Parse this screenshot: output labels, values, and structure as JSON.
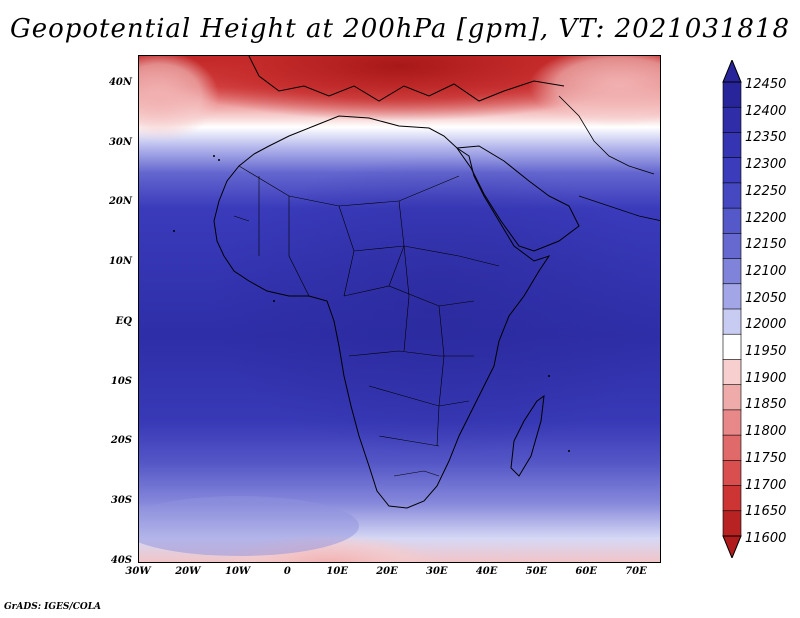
{
  "title": "Geopotential Height at 200hPa [gpm], VT: 2021031818",
  "credit": "GrADS: IGES/COLA",
  "lat_ticks": [
    "40N",
    "30N",
    "20N",
    "10N",
    "EQ",
    "10S",
    "20S",
    "30S",
    "40S"
  ],
  "lon_ticks": [
    "30W",
    "20W",
    "10W",
    "0",
    "10E",
    "20E",
    "30E",
    "40E",
    "50E",
    "60E",
    "70E"
  ],
  "colorbar": {
    "levels": [
      "12450",
      "12400",
      "12350",
      "12300",
      "12250",
      "12200",
      "12150",
      "12100",
      "12050",
      "12000",
      "11950",
      "11900",
      "11850",
      "11800",
      "11750",
      "11700",
      "11650",
      "11600"
    ],
    "colors": [
      "#28259a",
      "#2f2ea8",
      "#3535b3",
      "#3b3cbb",
      "#4648c2",
      "#5558c9",
      "#6669d0",
      "#8083da",
      "#a3a6e6",
      "#c8cbf2",
      "#ffffff",
      "#f7cfcf",
      "#efaaaa",
      "#e88888",
      "#e06a6a",
      "#d94e4e",
      "#cd3434",
      "#b82222"
    ]
  },
  "map": {
    "lon_range": [
      -30,
      75
    ],
    "lat_range": [
      -40,
      45
    ],
    "accent_colors": {
      "high": "#2b2aa0",
      "mid": "#ffffff",
      "low": "#b01c1c"
    }
  }
}
